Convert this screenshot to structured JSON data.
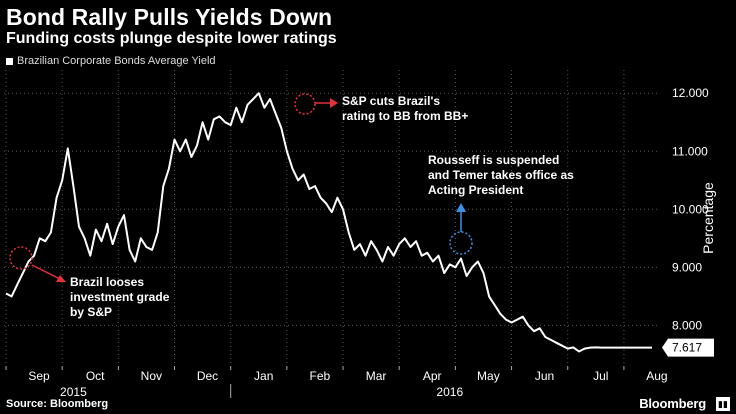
{
  "title": "Bond Rally Pulls Yields Down",
  "subtitle": "Funding costs plunge despite lower ratings",
  "source": "Source: Bloomberg",
  "brand": "Bloomberg",
  "brand_icon": "bloomberg-terminal-icon",
  "colors": {
    "background": "#000000",
    "line": "#ffffff",
    "annotation_red": "#e8303a",
    "annotation_blue": "#3c8fe6"
  },
  "chart_data": {
    "type": "line",
    "title": "Bond Rally Pulls Yields Down",
    "ylabel": "Percentage",
    "ylim": [
      7.3,
      12.4
    ],
    "yticks": [
      "8.000",
      "9.000",
      "10.000",
      "11.000",
      "12.000"
    ],
    "ytick_values": [
      8,
      9,
      10,
      11,
      12
    ],
    "months": [
      "Sep",
      "Oct",
      "Nov",
      "Dec",
      "Jan",
      "Feb",
      "Mar",
      "Apr",
      "May",
      "Jun",
      "Jul",
      "Aug"
    ],
    "years": [
      "2015",
      "2016"
    ],
    "last_value": "7.617",
    "series": [
      {
        "name": "Brazilian Corporate Bonds Average Yield",
        "x": [
          0,
          0.1,
          0.2,
          0.3,
          0.4,
          0.5,
          0.6,
          0.7,
          0.8,
          0.9,
          1.0,
          1.1,
          1.2,
          1.3,
          1.4,
          1.5,
          1.6,
          1.7,
          1.8,
          1.9,
          2.0,
          2.1,
          2.2,
          2.3,
          2.4,
          2.5,
          2.6,
          2.7,
          2.8,
          2.9,
          3.0,
          3.1,
          3.2,
          3.3,
          3.4,
          3.5,
          3.6,
          3.7,
          3.8,
          3.9,
          4.0,
          4.1,
          4.2,
          4.3,
          4.4,
          4.5,
          4.6,
          4.7,
          4.8,
          4.9,
          5.0,
          5.1,
          5.2,
          5.3,
          5.4,
          5.5,
          5.6,
          5.7,
          5.8,
          5.9,
          6.0,
          6.1,
          6.2,
          6.3,
          6.4,
          6.5,
          6.6,
          6.7,
          6.8,
          6.9,
          7.0,
          7.1,
          7.2,
          7.3,
          7.4,
          7.5,
          7.6,
          7.7,
          7.8,
          7.9,
          8.0,
          8.1,
          8.2,
          8.3,
          8.4,
          8.5,
          8.6,
          8.7,
          8.8,
          8.9,
          9.0,
          9.1,
          9.2,
          9.3,
          9.4,
          9.5,
          9.6,
          9.7,
          9.8,
          9.9,
          10.0,
          10.1,
          10.2,
          10.3,
          10.4,
          10.5,
          10.6,
          10.7,
          10.8,
          10.9,
          11.0,
          11.1,
          11.2,
          11.3,
          11.4,
          11.5
        ],
        "values": [
          8.55,
          8.5,
          8.7,
          8.9,
          9.1,
          9.2,
          9.5,
          9.45,
          9.6,
          10.2,
          10.5,
          11.05,
          10.4,
          9.7,
          9.5,
          9.2,
          9.65,
          9.45,
          9.75,
          9.4,
          9.7,
          9.9,
          9.3,
          9.1,
          9.5,
          9.35,
          9.3,
          9.6,
          10.4,
          10.7,
          11.2,
          11.0,
          11.2,
          10.9,
          11.1,
          11.5,
          11.2,
          11.55,
          11.6,
          11.5,
          11.45,
          11.75,
          11.5,
          11.8,
          11.9,
          12.0,
          11.75,
          11.9,
          11.65,
          11.4,
          11.0,
          10.7,
          10.5,
          10.6,
          10.35,
          10.4,
          10.2,
          10.1,
          9.95,
          10.2,
          10.0,
          9.6,
          9.3,
          9.4,
          9.2,
          9.45,
          9.3,
          9.1,
          9.35,
          9.2,
          9.4,
          9.5,
          9.35,
          9.45,
          9.2,
          9.25,
          9.1,
          9.2,
          8.9,
          9.05,
          9.0,
          9.15,
          8.85,
          9.0,
          9.1,
          8.9,
          8.5,
          8.35,
          8.2,
          8.1,
          8.05,
          8.1,
          8.15,
          8.0,
          7.9,
          7.95,
          7.8,
          7.75,
          7.7,
          7.65,
          7.6,
          7.62,
          7.55,
          7.6,
          7.617,
          7.62,
          7.617,
          7.617,
          7.617,
          7.617,
          7.617,
          7.617,
          7.617,
          7.617,
          7.617,
          7.617
        ]
      }
    ],
    "annotations": [
      {
        "id": "brazil-downgrade",
        "lines": [
          "Brazil looses",
          "investment grade",
          "by S&P"
        ],
        "color": "red"
      },
      {
        "id": "sp-cut",
        "lines": [
          "S&P cuts Brazil's",
          "rating to BB from BB+"
        ],
        "color": "red"
      },
      {
        "id": "rousseff",
        "lines": [
          "Rousseff is suspended",
          "and Temer takes office as",
          "Acting President"
        ],
        "color": "blue"
      }
    ]
  }
}
